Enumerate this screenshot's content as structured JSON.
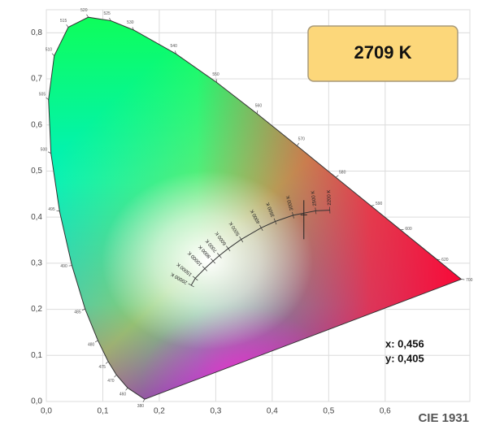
{
  "chart_data": {
    "type": "chromaticity",
    "title": "CIE 1931",
    "badge": "2709 K",
    "point": {
      "x": 0.456,
      "y": 0.405,
      "value_labels": [
        "x: 0,456",
        "y: 0,405"
      ]
    },
    "xlim": [
      0,
      0.75
    ],
    "ylim": [
      0,
      0.85
    ],
    "xticks": [
      {
        "value": 0,
        "label": "0,0"
      },
      {
        "value": 0.1,
        "label": "0,1"
      },
      {
        "value": 0.2,
        "label": "0,2"
      },
      {
        "value": 0.3,
        "label": "0,3"
      },
      {
        "value": 0.4,
        "label": "0,4"
      },
      {
        "value": 0.5,
        "label": "0,5"
      },
      {
        "value": 0.6,
        "label": "0,6"
      }
    ],
    "yticks": [
      {
        "value": 0,
        "label": "0,0"
      },
      {
        "value": 0.1,
        "label": "0,1"
      },
      {
        "value": 0.2,
        "label": "0,2"
      },
      {
        "value": 0.3,
        "label": "0,3"
      },
      {
        "value": 0.4,
        "label": "0,4"
      },
      {
        "value": 0.5,
        "label": "0,5"
      },
      {
        "value": 0.6,
        "label": "0,6"
      },
      {
        "value": 0.7,
        "label": "0,7"
      },
      {
        "value": 0.8,
        "label": "0,8"
      }
    ],
    "grid": true,
    "spectral_locus": {
      "wavelengths": [
        380,
        460,
        470,
        475,
        480,
        485,
        490,
        495,
        500,
        505,
        510,
        515,
        520,
        525,
        530,
        540,
        550,
        560,
        570,
        580,
        590,
        600,
        620,
        700
      ],
      "x": [
        0.1741,
        0.144,
        0.1241,
        0.1096,
        0.0913,
        0.0687,
        0.0454,
        0.0235,
        0.0082,
        0.0039,
        0.0139,
        0.0389,
        0.0743,
        0.1142,
        0.1547,
        0.2296,
        0.3016,
        0.3731,
        0.4441,
        0.5125,
        0.5752,
        0.627,
        0.6915,
        0.7347
      ],
      "y": [
        0.005,
        0.0297,
        0.0578,
        0.0868,
        0.1327,
        0.2007,
        0.295,
        0.4127,
        0.5384,
        0.6548,
        0.7502,
        0.812,
        0.8338,
        0.8262,
        0.8059,
        0.7543,
        0.6923,
        0.6245,
        0.5547,
        0.4866,
        0.4242,
        0.3725,
        0.3083,
        0.2653
      ]
    },
    "planckian_locus": {
      "labels": [
        "20000 K",
        "15000 K",
        "10000 K",
        "8000 K",
        "7000 K",
        "6000 K",
        "5000 K",
        "4000 K",
        "3500 K",
        "3000 K",
        "2500 K",
        "2200 K"
      ],
      "x": [
        0.2565,
        0.2637,
        0.2806,
        0.2952,
        0.3064,
        0.3221,
        0.3451,
        0.3805,
        0.4053,
        0.4369,
        0.477,
        0.502
      ],
      "y": [
        0.2522,
        0.2673,
        0.2883,
        0.3048,
        0.3166,
        0.3318,
        0.3516,
        0.3768,
        0.3907,
        0.4041,
        0.4137,
        0.4152
      ]
    }
  }
}
